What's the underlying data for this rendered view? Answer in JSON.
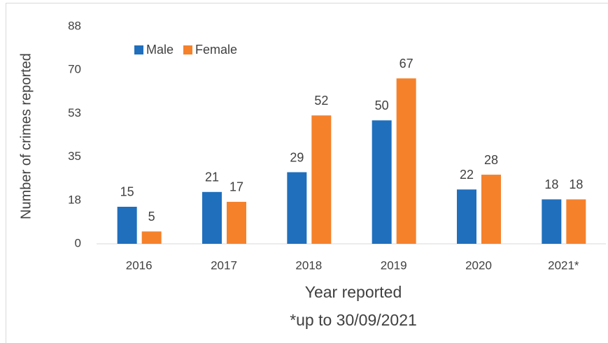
{
  "chart_data": {
    "type": "bar",
    "categories": [
      "2016",
      "2017",
      "2018",
      "2019",
      "2020",
      "2021*"
    ],
    "series": [
      {
        "name": "Male",
        "color": "#1f6fbd",
        "values": [
          15,
          21,
          29,
          50,
          22,
          18
        ]
      },
      {
        "name": "Female",
        "color": "#f5812b",
        "values": [
          5,
          17,
          52,
          67,
          28,
          18
        ]
      }
    ],
    "ylim": [
      0,
      88
    ],
    "yticks": [
      0,
      {
        "value": 17.6,
        "label": "18"
      },
      {
        "value": 35.2,
        "label": "35"
      },
      {
        "value": 52.8,
        "label": "53"
      },
      {
        "value": 70.4,
        "label": "70"
      },
      88
    ],
    "ylabel": "Number of crimes reported",
    "xlabel": "Year reported",
    "annotation": "*up to 30/09/2021",
    "legend": "top-left",
    "grid": false
  }
}
